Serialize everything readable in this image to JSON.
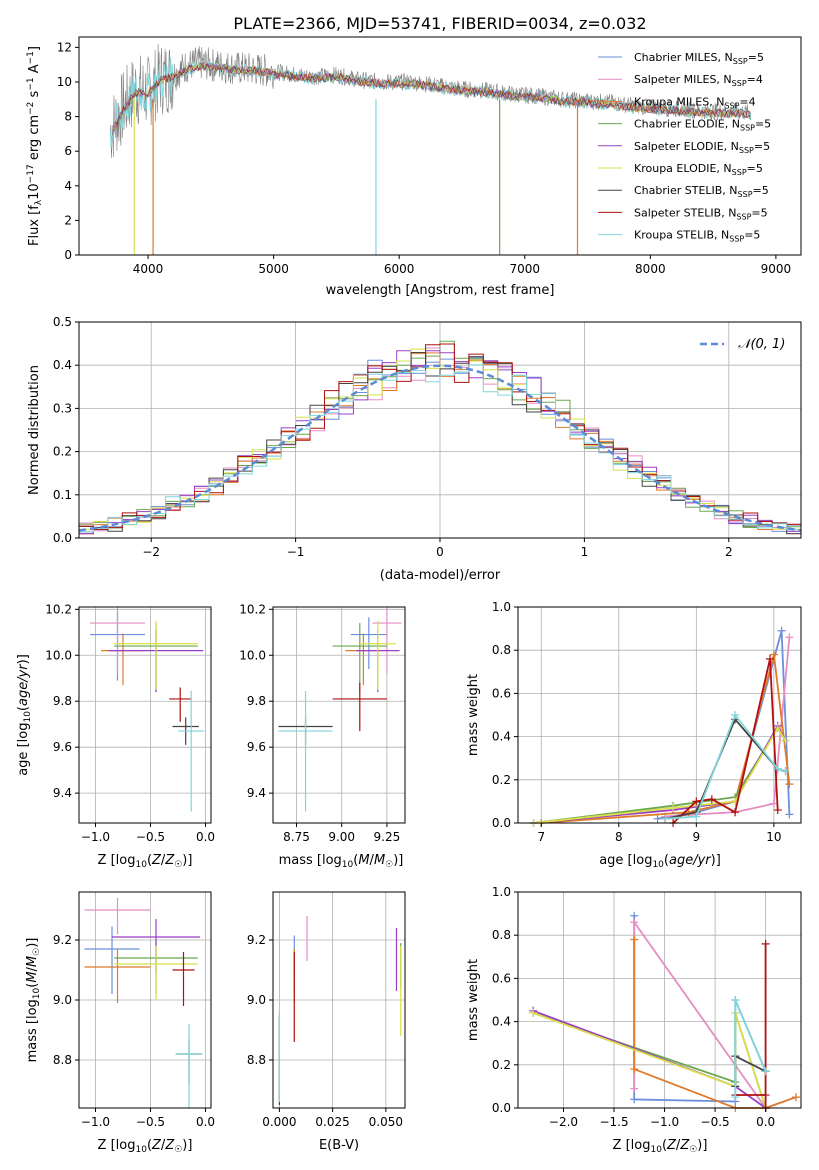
{
  "figure": {
    "title": "PLATE=2366, MJD=53741, FIBERID=0034, z=0.032"
  },
  "legend": [
    {
      "label": "Chabrier MILES, N",
      "sub": "SSP",
      "tail": "=5",
      "color": "#6b8fdc"
    },
    {
      "label": "Salpeter MILES, N",
      "sub": "SSP",
      "tail": "=4",
      "color": "#e58dc4"
    },
    {
      "label": "Kroupa MILES, N",
      "sub": "SSP",
      "tail": "=4",
      "color": "#e07b2a"
    },
    {
      "label": "Chabrier ELODIE, N",
      "sub": "SSP",
      "tail": "=5",
      "color": "#6aa84f"
    },
    {
      "label": "Salpeter ELODIE, N",
      "sub": "SSP",
      "tail": "=5",
      "color": "#9b3fc8"
    },
    {
      "label": "Kroupa ELODIE, N",
      "sub": "SSP",
      "tail": "=5",
      "color": "#d8e04a"
    },
    {
      "label": "Chabrier STELIB, N",
      "sub": "SSP",
      "tail": "=5",
      "color": "#444444"
    },
    {
      "label": "Salpeter STELIB, N",
      "sub": "SSP",
      "tail": "=5",
      "color": "#b01010"
    },
    {
      "label": "Kroupa STELIB, N",
      "sub": "SSP",
      "tail": "=5",
      "color": "#7fd6dc"
    }
  ],
  "chart_data": [
    {
      "id": "spectrum",
      "type": "line",
      "xlabel": "wavelength [Angstrom, rest frame]",
      "ylabel": "Flux [f_λ10^-17 erg cm^-2 s^-1 A^-1]",
      "xlim": [
        3450,
        9200
      ],
      "ylim": [
        0,
        12.6
      ],
      "xticks": [
        4000,
        5000,
        6000,
        7000,
        8000,
        9000
      ],
      "yticks": [
        0,
        2,
        4,
        6,
        8,
        10,
        12
      ],
      "grid": false,
      "legend_position": "top-right",
      "series": [
        {
          "name": "data",
          "color": "#808080",
          "x": [
            3700,
            3800,
            3900,
            4000,
            4100,
            4200,
            4300,
            4400,
            4500,
            4700,
            4900,
            5100,
            5300,
            5500,
            5700,
            5900,
            6100,
            6300,
            6500,
            6700,
            6900,
            7100,
            7300,
            7500,
            7700,
            7900,
            8100,
            8300,
            8500,
            8700,
            8800
          ],
          "y": [
            7.2,
            8.5,
            9.6,
            9.4,
            10.2,
            10.4,
            10.9,
            11.1,
            11.0,
            10.8,
            10.7,
            10.5,
            10.3,
            10.4,
            10.1,
            10.0,
            10.0,
            9.8,
            9.6,
            9.5,
            9.3,
            9.2,
            9.0,
            8.9,
            8.8,
            8.6,
            8.5,
            8.4,
            8.3,
            8.3,
            8.2
          ]
        },
        {
          "name": "model",
          "color": "#7fd6dc",
          "x": [
            3700,
            3800,
            3900,
            4000,
            4100,
            4200,
            4300,
            4400,
            4500,
            4700,
            4900,
            5100,
            5300,
            5500,
            5700,
            5900,
            6100,
            6300,
            6500,
            6700,
            6900,
            7100,
            7300,
            7500,
            7700,
            7900,
            8100,
            8300,
            8500,
            8700,
            8800
          ],
          "y": [
            7.0,
            8.3,
            9.4,
            9.3,
            10.1,
            10.3,
            10.7,
            10.9,
            10.9,
            10.7,
            10.6,
            10.4,
            10.2,
            10.3,
            10.0,
            9.9,
            9.9,
            9.7,
            9.5,
            9.4,
            9.2,
            9.1,
            8.9,
            8.8,
            8.7,
            8.5,
            8.4,
            8.3,
            8.2,
            8.2,
            8.1
          ]
        }
      ]
    },
    {
      "id": "residuals",
      "type": "line",
      "xlabel": "(data-model)/error",
      "ylabel": "Normed distribution",
      "xlim": [
        -2.5,
        2.5
      ],
      "ylim": [
        0,
        0.5
      ],
      "xticks": [
        -2,
        -1,
        0,
        1,
        2
      ],
      "yticks": [
        0.0,
        0.1,
        0.2,
        0.3,
        0.4,
        0.5
      ],
      "grid": true,
      "legend_label": "𝒩(0, 1)",
      "legend_position": "top-right"
    },
    {
      "id": "age_vs_Z",
      "type": "scatter",
      "xlabel": "Z [log10(Z/Z☉)]",
      "ylabel": "age [log10(age/yr)]",
      "xlim": [
        -1.15,
        0.05
      ],
      "ylim": [
        9.27,
        10.21
      ],
      "xticks": [
        -1.0,
        -0.5,
        0.0
      ],
      "yticks": [
        9.4,
        9.6,
        9.8,
        10.0,
        10.2
      ],
      "grid": true,
      "points": [
        {
          "x": -0.8,
          "y": 10.09,
          "xerr": 0.25,
          "yerr": 0.2,
          "color": "#6b8fdc"
        },
        {
          "x": -0.8,
          "y": 10.14,
          "xerr": 0.25,
          "yerr": 0.22,
          "color": "#e58dc4"
        },
        {
          "x": -0.75,
          "y": 10.02,
          "xerr": 0.2,
          "yerr": 0.15,
          "color": "#e07b2a"
        },
        {
          "x": -0.45,
          "y": 10.04,
          "xerr": 0.38,
          "yerr": 0.2,
          "color": "#6aa84f"
        },
        {
          "x": -0.45,
          "y": 10.02,
          "xerr": 0.43,
          "yerr": 0.18,
          "color": "#9b3fc8"
        },
        {
          "x": -0.45,
          "y": 10.05,
          "xerr": 0.38,
          "yerr": 0.2,
          "color": "#d8e04a"
        },
        {
          "x": -0.18,
          "y": 9.69,
          "xerr": 0.12,
          "yerr": 0.08,
          "color": "#444444"
        },
        {
          "x": -0.23,
          "y": 9.81,
          "xerr": 0.1,
          "yerr": 0.1,
          "color": "#b01010"
        },
        {
          "x": -0.13,
          "y": 9.67,
          "xerr": 0.12,
          "yerr": 0.35,
          "color": "#7fd6dc"
        }
      ]
    },
    {
      "id": "age_vs_mass",
      "type": "scatter",
      "xlabel": "mass [log10(M/M☉)]",
      "ylabel": "",
      "xlim": [
        8.62,
        9.35
      ],
      "ylim": [
        9.27,
        10.21
      ],
      "xticks": [
        8.75,
        9.0,
        9.25
      ],
      "yticks": [
        9.4,
        9.6,
        9.8,
        10.0,
        10.2
      ],
      "grid": true,
      "points": [
        {
          "x": 9.15,
          "y": 10.09,
          "xerr": 0.1,
          "yerr": 0.15,
          "color": "#6b8fdc"
        },
        {
          "x": 9.25,
          "y": 10.14,
          "xerr": 0.08,
          "yerr": 0.22,
          "color": "#e58dc4"
        },
        {
          "x": 9.12,
          "y": 10.02,
          "xerr": 0.1,
          "yerr": 0.15,
          "color": "#e07b2a"
        },
        {
          "x": 9.1,
          "y": 10.04,
          "xerr": 0.15,
          "yerr": 0.2,
          "color": "#6aa84f"
        },
        {
          "x": 9.2,
          "y": 10.02,
          "xerr": 0.12,
          "yerr": 0.18,
          "color": "#9b3fc8"
        },
        {
          "x": 9.2,
          "y": 10.05,
          "xerr": 0.1,
          "yerr": 0.2,
          "color": "#d8e04a"
        },
        {
          "x": 8.8,
          "y": 9.69,
          "xerr": 0.15,
          "yerr": 0.08,
          "color": "#444444"
        },
        {
          "x": 9.1,
          "y": 9.81,
          "xerr": 0.15,
          "yerr": 0.14,
          "color": "#b01010"
        },
        {
          "x": 8.8,
          "y": 9.67,
          "xerr": 0.15,
          "yerr": 0.35,
          "color": "#7fd6dc"
        }
      ]
    },
    {
      "id": "mw_vs_age",
      "type": "line",
      "xlabel": "age [log10(age/yr)]",
      "ylabel": "mass weight",
      "xlim": [
        6.7,
        10.35
      ],
      "ylim": [
        0,
        1.0
      ],
      "xticks": [
        7,
        8,
        9,
        10
      ],
      "yticks": [
        0.0,
        0.2,
        0.4,
        0.6,
        0.8,
        1.0
      ],
      "grid": true,
      "series": [
        {
          "color": "#6b8fdc",
          "x": [
            8.5,
            9.0,
            9.5,
            10.1,
            10.2
          ],
          "y": [
            0.02,
            0.05,
            0.1,
            0.89,
            0.04
          ]
        },
        {
          "color": "#e58dc4",
          "x": [
            8.6,
            9.0,
            9.5,
            10.0,
            10.2
          ],
          "y": [
            0.03,
            0.04,
            0.05,
            0.09,
            0.86
          ]
        },
        {
          "color": "#e07b2a",
          "x": [
            7.0,
            8.9,
            9.5,
            10.0,
            10.2
          ],
          "y": [
            0.0,
            0.05,
            0.1,
            0.78,
            0.18
          ]
        },
        {
          "color": "#6aa84f",
          "x": [
            6.9,
            8.7,
            9.5,
            10.05,
            10.15
          ],
          "y": [
            0.0,
            0.08,
            0.12,
            0.44,
            0.38
          ]
        },
        {
          "color": "#9b3fc8",
          "x": [
            6.9,
            8.7,
            9.5,
            10.05,
            10.15
          ],
          "y": [
            0.0,
            0.06,
            0.1,
            0.45,
            0.38
          ]
        },
        {
          "color": "#d8e04a",
          "x": [
            6.9,
            8.7,
            9.5,
            10.05,
            10.15
          ],
          "y": [
            0.0,
            0.07,
            0.1,
            0.44,
            0.38
          ]
        },
        {
          "color": "#444444",
          "x": [
            8.6,
            9.0,
            9.5,
            10.05,
            10.15
          ],
          "y": [
            0.02,
            0.05,
            0.48,
            0.25,
            0.24
          ]
        },
        {
          "color": "#b01010",
          "x": [
            8.7,
            9.0,
            9.2,
            9.5,
            9.95,
            10.05
          ],
          "y": [
            0.0,
            0.1,
            0.11,
            0.05,
            0.76,
            0.06
          ]
        },
        {
          "color": "#7fd6dc",
          "x": [
            8.6,
            9.0,
            9.5,
            10.05,
            10.15
          ],
          "y": [
            0.02,
            0.03,
            0.5,
            0.25,
            0.24
          ]
        }
      ]
    },
    {
      "id": "mass_vs_Z",
      "type": "scatter",
      "xlabel": "Z [log10(Z/Z☉)]",
      "ylabel": "mass [log10(M/M☉)]",
      "xlim": [
        -1.15,
        0.05
      ],
      "ylim": [
        8.64,
        9.36
      ],
      "xticks": [
        -1.0,
        -0.5,
        0.0
      ],
      "yticks": [
        8.8,
        9.0,
        9.2
      ],
      "grid": true,
      "points": [
        {
          "x": -0.85,
          "y": 9.17,
          "xerr": 0.25,
          "yerr": 0.15,
          "color": "#6b8fdc"
        },
        {
          "x": -0.8,
          "y": 9.3,
          "xerr": 0.3,
          "yerr": 0.08,
          "color": "#e58dc4"
        },
        {
          "x": -0.8,
          "y": 9.11,
          "xerr": 0.3,
          "yerr": 0.12,
          "color": "#e07b2a"
        },
        {
          "x": -0.45,
          "y": 9.14,
          "xerr": 0.38,
          "yerr": 0.12,
          "color": "#6aa84f"
        },
        {
          "x": -0.45,
          "y": 9.21,
          "xerr": 0.4,
          "yerr": 0.12,
          "color": "#9b3fc8"
        },
        {
          "x": -0.45,
          "y": 9.12,
          "xerr": 0.38,
          "yerr": 0.12,
          "color": "#d8e04a"
        },
        {
          "x": -0.15,
          "y": 8.82,
          "xerr": 0.12,
          "yerr": 0.1,
          "color": "#444444"
        },
        {
          "x": -0.2,
          "y": 9.1,
          "xerr": 0.1,
          "yerr": 0.12,
          "color": "#b01010"
        },
        {
          "x": -0.15,
          "y": 8.82,
          "xerr": 0.12,
          "yerr": 0.2,
          "color": "#7fd6dc"
        }
      ]
    },
    {
      "id": "mass_vs_ebv",
      "type": "scatter",
      "xlabel": "E(B-V)",
      "ylabel": "",
      "xlim": [
        -0.003,
        0.059
      ],
      "ylim": [
        8.64,
        9.36
      ],
      "xticks": [
        0.0,
        0.025,
        0.05
      ],
      "yticks": [
        8.8,
        9.0,
        9.2
      ],
      "grid": true,
      "points": [
        {
          "x": 0.007,
          "y": 9.17,
          "xerr": 0,
          "yerr": 0.09,
          "color": "#6b8fdc"
        },
        {
          "x": 0.013,
          "y": 9.23,
          "xerr": 0,
          "yerr": 0.1,
          "color": "#e58dc4"
        },
        {
          "x": 0.007,
          "y": 9.11,
          "xerr": 0,
          "yerr": 0.12,
          "color": "#e07b2a"
        },
        {
          "x": 0.057,
          "y": 9.14,
          "xerr": 0,
          "yerr": 0.1,
          "color": "#6aa84f"
        },
        {
          "x": 0.055,
          "y": 9.17,
          "xerr": 0,
          "yerr": 0.14,
          "color": "#9b3fc8"
        },
        {
          "x": 0.057,
          "y": 9.08,
          "xerr": 0,
          "yerr": 0.2,
          "color": "#d8e04a"
        },
        {
          "x": 0.0,
          "y": 8.85,
          "xerr": 0,
          "yerr": 0.2,
          "color": "#444444"
        },
        {
          "x": 0.007,
          "y": 9.06,
          "xerr": 0,
          "yerr": 0.2,
          "color": "#b01010"
        },
        {
          "x": 0.0,
          "y": 8.86,
          "xerr": 0,
          "yerr": 0.2,
          "color": "#7fd6dc"
        }
      ]
    },
    {
      "id": "mw_vs_Z",
      "type": "line",
      "xlabel": "Z [log10(Z/Z☉)]",
      "ylabel": "mass weight",
      "xlim": [
        -2.45,
        0.35
      ],
      "ylim": [
        0,
        1.0
      ],
      "xticks": [
        -2.0,
        -1.5,
        -1.0,
        -0.5,
        0.0
      ],
      "yticks": [
        0.0,
        0.2,
        0.4,
        0.6,
        0.8,
        1.0
      ],
      "grid": true,
      "series": [
        {
          "color": "#6b8fdc",
          "x": [
            -1.3,
            -1.3,
            -0.3,
            -0.3,
            0.0
          ],
          "y": [
            0.89,
            0.04,
            0.03,
            0.5,
            0.17
          ]
        },
        {
          "color": "#e58dc4",
          "x": [
            -1.3,
            -1.3,
            0.0,
            0.3
          ],
          "y": [
            0.09,
            0.86,
            0.0,
            0.05
          ]
        },
        {
          "color": "#e07b2a",
          "x": [
            -1.3,
            -1.3,
            -0.3,
            0.0,
            0.3
          ],
          "y": [
            0.78,
            0.18,
            0.0,
            0.0,
            0.05
          ]
        },
        {
          "color": "#6aa84f",
          "x": [
            -2.3,
            -0.3,
            -0.3,
            0.0
          ],
          "y": [
            0.44,
            0.12,
            0.44,
            0.0
          ]
        },
        {
          "color": "#9b3fc8",
          "x": [
            -2.3,
            -0.3,
            0.0
          ],
          "y": [
            0.45,
            0.1,
            0.0
          ]
        },
        {
          "color": "#d8e04a",
          "x": [
            -2.3,
            -0.3,
            -0.3,
            0.0
          ],
          "y": [
            0.44,
            0.1,
            0.44,
            0.0
          ]
        },
        {
          "color": "#444444",
          "x": [
            -0.3,
            -0.3,
            0.0
          ],
          "y": [
            0.1,
            0.24,
            0.17
          ]
        },
        {
          "color": "#b01010",
          "x": [
            -0.3,
            0.0,
            0.0,
            0.0
          ],
          "y": [
            0.06,
            0.06,
            0.76,
            0.0
          ]
        },
        {
          "color": "#7fd6dc",
          "x": [
            -0.3,
            -0.3,
            0.0
          ],
          "y": [
            0.05,
            0.5,
            0.17
          ]
        }
      ]
    }
  ]
}
